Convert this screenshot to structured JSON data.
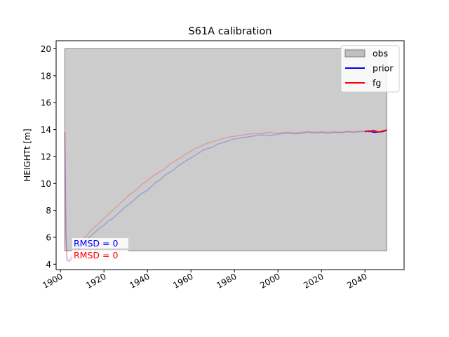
{
  "chart_data": {
    "type": "line",
    "title": "S61A calibration",
    "xlabel": "",
    "ylabel": "HEIGHTt [m]",
    "xlim": [
      1898,
      2058
    ],
    "ylim": [
      3.6,
      20.6
    ],
    "xticks": [
      1900,
      1920,
      1940,
      1960,
      1980,
      2000,
      2020,
      2040
    ],
    "yticks": [
      4,
      6,
      8,
      10,
      12,
      14,
      16,
      18,
      20
    ],
    "grid": false,
    "legend_placement": "top-right",
    "obs_band": {
      "name": "obs",
      "x": [
        1902,
        2050
      ],
      "y": [
        5,
        20
      ],
      "color": "#bfbfbf"
    },
    "series": [
      {
        "name": "prior",
        "color": "#0000ff",
        "x": [
          1902,
          1902.5,
          1903,
          1904,
          1906,
          1908,
          1910,
          1912,
          1914,
          1916,
          1918,
          1920,
          1922,
          1924,
          1926,
          1928,
          1930,
          1932,
          1934,
          1936,
          1938,
          1940,
          1942,
          1944,
          1946,
          1948,
          1950,
          1952,
          1954,
          1956,
          1958,
          1960,
          1962,
          1964,
          1966,
          1968,
          1970,
          1972,
          1974,
          1976,
          1978,
          1980,
          1982,
          1984,
          1986,
          1988,
          1990,
          1992,
          1994,
          1996,
          1998,
          2000,
          2002,
          2004,
          2006,
          2008,
          2010,
          2012,
          2014,
          2016,
          2018,
          2020,
          2022,
          2024,
          2026,
          2028,
          2030,
          2032,
          2034,
          2036,
          2038,
          2040
        ],
        "y": [
          13.8,
          6.3,
          4.3,
          4.2,
          4.5,
          5.0,
          5.5,
          5.8,
          6.1,
          6.4,
          6.7,
          6.9,
          7.2,
          7.4,
          7.7,
          8.0,
          8.3,
          8.5,
          8.8,
          9.1,
          9.3,
          9.5,
          9.8,
          10.1,
          10.3,
          10.6,
          10.8,
          11.0,
          11.3,
          11.5,
          11.7,
          11.9,
          12.1,
          12.3,
          12.5,
          12.6,
          12.7,
          12.9,
          13.0,
          13.1,
          13.2,
          13.3,
          13.35,
          13.4,
          13.45,
          13.5,
          13.55,
          13.6,
          13.6,
          13.55,
          13.6,
          13.65,
          13.7,
          13.75,
          13.7,
          13.7,
          13.7,
          13.75,
          13.8,
          13.75,
          13.75,
          13.8,
          13.75,
          13.75,
          13.8,
          13.75,
          13.8,
          13.85,
          13.8,
          13.8,
          13.85,
          13.85
        ]
      },
      {
        "name": "fg",
        "color": "#ff0000",
        "x": [
          1902,
          1902.5,
          1903,
          1904,
          1906,
          1908,
          1910,
          1912,
          1914,
          1916,
          1918,
          1920,
          1922,
          1924,
          1926,
          1928,
          1930,
          1932,
          1934,
          1936,
          1938,
          1940,
          1942,
          1944,
          1946,
          1948,
          1950,
          1952,
          1954,
          1956,
          1958,
          1960,
          1962,
          1964,
          1966,
          1968,
          1970,
          1972,
          1974,
          1976,
          1978,
          1980,
          1982,
          1984,
          1986,
          1988,
          1990,
          1992,
          1994,
          1996,
          1998,
          2000,
          2002,
          2004,
          2006,
          2008,
          2010,
          2012,
          2014,
          2016,
          2018,
          2020,
          2022,
          2024,
          2026,
          2028,
          2030,
          2032,
          2034,
          2036,
          2038,
          2040
        ],
        "y": [
          13.8,
          6.3,
          4.3,
          4.3,
          4.8,
          5.4,
          5.8,
          6.1,
          6.5,
          6.8,
          7.1,
          7.4,
          7.7,
          8.0,
          8.3,
          8.6,
          8.9,
          9.2,
          9.4,
          9.7,
          10.0,
          10.2,
          10.5,
          10.7,
          10.9,
          11.1,
          11.4,
          11.6,
          11.8,
          12.0,
          12.2,
          12.4,
          12.6,
          12.7,
          12.9,
          13.0,
          13.1,
          13.2,
          13.3,
          13.4,
          13.45,
          13.5,
          13.55,
          13.6,
          13.65,
          13.7,
          13.7,
          13.7,
          13.75,
          13.8,
          13.75,
          13.75,
          13.75,
          13.8,
          13.8,
          13.75,
          13.8,
          13.8,
          13.85,
          13.8,
          13.8,
          13.85,
          13.8,
          13.8,
          13.85,
          13.8,
          13.8,
          13.85,
          13.85,
          13.85,
          13.9,
          13.9
        ]
      }
    ],
    "highlight_series": [
      {
        "name": "prior",
        "color": "#0000ff",
        "x": [
          2040,
          2042,
          2044,
          2046,
          2048,
          2050
        ],
        "y": [
          13.85,
          13.9,
          13.8,
          13.82,
          13.85,
          13.95
        ]
      },
      {
        "name": "fg",
        "color": "#ff0000",
        "x": [
          2040,
          2042,
          2044,
          2046,
          2048,
          2050
        ],
        "y": [
          13.9,
          13.85,
          13.95,
          13.82,
          13.88,
          13.98
        ]
      }
    ],
    "legend": [
      {
        "label": "obs",
        "kind": "patch",
        "color": "#bfbfbf"
      },
      {
        "label": "prior",
        "kind": "line",
        "color": "#0000ff"
      },
      {
        "label": "fg",
        "kind": "line",
        "color": "#ff0000"
      }
    ],
    "annotations": [
      {
        "text": "RMSD = 0",
        "color": "#0000ff"
      },
      {
        "text": "RMSD = 0",
        "color": "#ff0000"
      }
    ]
  }
}
